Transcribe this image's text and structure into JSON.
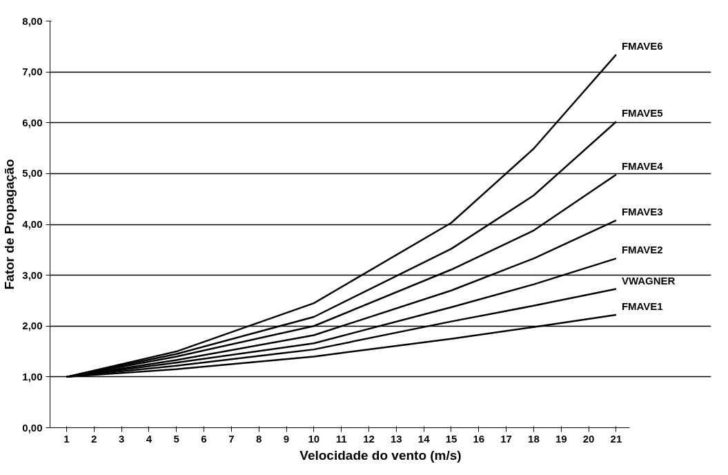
{
  "chart_data": {
    "type": "line",
    "xlabel": "Velocidade do vento (m/s)",
    "ylabel": "Fator de Propagação",
    "xlim": [
      0.4,
      21.5
    ],
    "xticks": [
      1,
      2,
      3,
      4,
      5,
      6,
      7,
      8,
      9,
      10,
      11,
      12,
      13,
      14,
      15,
      16,
      17,
      18,
      19,
      20,
      21
    ],
    "ylim": [
      0,
      8
    ],
    "yticks": [
      {
        "value": 0,
        "label": "0,00"
      },
      {
        "value": 1,
        "label": "1,00"
      },
      {
        "value": 2,
        "label": "2,00"
      },
      {
        "value": 3,
        "label": "3,00"
      },
      {
        "value": 4,
        "label": "4,00"
      },
      {
        "value": 5,
        "label": "5,00"
      },
      {
        "value": 6,
        "label": "6,00"
      },
      {
        "value": 7,
        "label": "7,00"
      },
      {
        "value": 8,
        "label": "8,00"
      }
    ],
    "grid": "y",
    "marker": "none",
    "line_style": "solid",
    "series": [
      {
        "name": "FMAVE6",
        "color": "#000000",
        "x": [
          1,
          5,
          10,
          15,
          18,
          21
        ],
        "values": [
          1,
          1.5,
          2.45,
          4.03,
          5.49,
          7.34
        ]
      },
      {
        "name": "FMAVE5",
        "color": "#000000",
        "x": [
          1,
          5,
          10,
          15,
          18,
          21
        ],
        "values": [
          1,
          1.45,
          2.18,
          3.52,
          4.57,
          6.02
        ]
      },
      {
        "name": "FMAVE4",
        "color": "#000000",
        "x": [
          1,
          5,
          10,
          15,
          18,
          21
        ],
        "values": [
          1,
          1.4,
          2.0,
          3.11,
          3.88,
          4.98
        ]
      },
      {
        "name": "FMAVE3",
        "color": "#000000",
        "x": [
          1,
          5,
          10,
          15,
          18,
          21
        ],
        "values": [
          1,
          1.33,
          1.82,
          2.7,
          3.33,
          4.08
        ]
      },
      {
        "name": "FMAVE2",
        "color": "#000000",
        "x": [
          1,
          5,
          10,
          15,
          18,
          21
        ],
        "values": [
          1,
          1.28,
          1.66,
          2.37,
          2.82,
          3.33
        ]
      },
      {
        "name": "VWAGNER",
        "color": "#000000",
        "x": [
          1,
          5,
          10,
          15,
          18,
          21
        ],
        "values": [
          1,
          1.22,
          1.54,
          2.09,
          2.4,
          2.73
        ]
      },
      {
        "name": "FMAVE1",
        "color": "#000000",
        "x": [
          1,
          5,
          10,
          15,
          18,
          21
        ],
        "values": [
          1,
          1.15,
          1.4,
          1.75,
          1.98,
          2.22
        ]
      }
    ]
  }
}
